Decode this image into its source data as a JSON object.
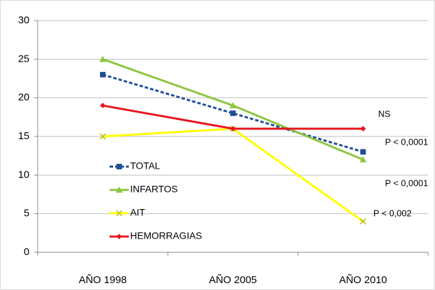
{
  "chart_data": {
    "type": "line",
    "categories": [
      "AÑO 1998",
      "AÑO 2005",
      "AÑO 2010"
    ],
    "series": [
      {
        "name": "TOTAL",
        "color": "#1f4e99",
        "values": [
          23,
          18,
          13
        ],
        "dash": true,
        "marker": "square"
      },
      {
        "name": "INFARTOS",
        "color": "#8cc63f",
        "values": [
          25,
          19,
          12
        ],
        "dash": false,
        "marker": "triangle"
      },
      {
        "name": "AIT",
        "color": "#ffff00",
        "values": [
          15,
          16,
          4
        ],
        "dash": false,
        "marker": "x"
      },
      {
        "name": "HEMORRAGIAS",
        "color": "#e8141b",
        "values": [
          19,
          16,
          16
        ],
        "dash": false,
        "marker": "diamond"
      }
    ],
    "annotations": [
      "NS",
      "P < 0,0001",
      "P < 0,0001",
      "P < 0,002"
    ],
    "ylim": [
      0,
      30
    ],
    "yticks": [
      0,
      5,
      10,
      15,
      20,
      25,
      30
    ],
    "grid": true
  }
}
